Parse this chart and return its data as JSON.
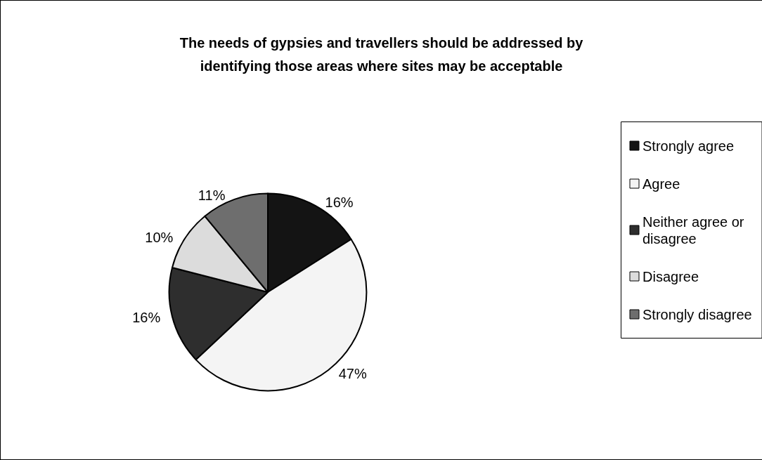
{
  "chart_data": {
    "type": "pie",
    "title": "The needs of gypsies and travellers should be addressed by\nidentifying those areas where sites may be acceptable",
    "categories": [
      "Strongly agree",
      "Agree",
      "Neither agree or disagree",
      "Disagree",
      "Strongly disagree"
    ],
    "values": [
      16,
      47,
      16,
      10,
      11
    ],
    "colors": [
      "#141414",
      "#f4f4f4",
      "#2e2e2e",
      "#dcdcdc",
      "#6e6e6e"
    ],
    "value_labels": [
      "16%",
      "47%",
      "16%",
      "10%",
      "11%"
    ],
    "legend": "right"
  }
}
